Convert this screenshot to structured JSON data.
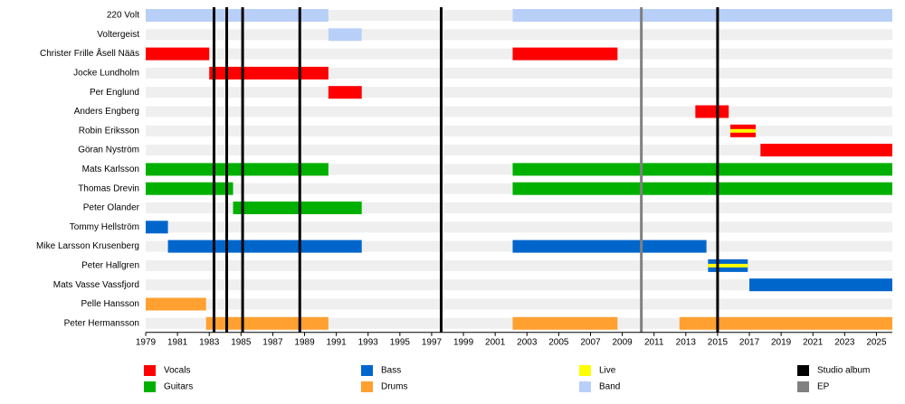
{
  "chart_data": {
    "type": "timeline",
    "xlim": [
      1979,
      2026
    ],
    "xticks": [
      1979,
      1981,
      1983,
      1985,
      1987,
      1989,
      1991,
      1993,
      1995,
      1997,
      1999,
      2001,
      2003,
      2005,
      2007,
      2009,
      2011,
      2013,
      2015,
      2017,
      2019,
      2021,
      2023,
      2025
    ],
    "series": [
      {
        "name": "Vocals",
        "color": "#ff0000"
      },
      {
        "name": "Guitars",
        "color": "#00b000"
      },
      {
        "name": "Bass",
        "color": "#0066cc"
      },
      {
        "name": "Drums",
        "color": "#ffa030"
      },
      {
        "name": "Live",
        "color": "#ffff00"
      },
      {
        "name": "Band",
        "color": "#b8d0f8"
      }
    ],
    "releases": [
      {
        "name": "Studio album",
        "color": "#000000",
        "dates": [
          1983.3,
          1984.1,
          1985.1,
          1988.7,
          1997.6,
          2015.0
        ]
      },
      {
        "name": "EP",
        "color": "#808080",
        "dates": [
          2010.2
        ]
      }
    ],
    "rows": [
      {
        "label": "220 Volt",
        "bars": [
          {
            "role": "Band",
            "start": 1979,
            "end": 1990.5
          },
          {
            "role": "Band",
            "start": 2002.1,
            "end": 2026
          }
        ]
      },
      {
        "label": "Voltergeist",
        "bars": [
          {
            "role": "Band",
            "start": 1990.5,
            "end": 1992.6
          }
        ]
      },
      {
        "label": "Christer Frille Åsell Nääs",
        "bars": [
          {
            "role": "Vocals",
            "start": 1979,
            "end": 1983
          },
          {
            "role": "Vocals",
            "start": 2002.1,
            "end": 2008.7
          }
        ]
      },
      {
        "label": "Jocke Lundholm",
        "bars": [
          {
            "role": "Vocals",
            "start": 1983,
            "end": 1990.5
          }
        ]
      },
      {
        "label": "Per Englund",
        "bars": [
          {
            "role": "Vocals",
            "start": 1990.5,
            "end": 1992.6
          }
        ]
      },
      {
        "label": "Anders Engberg",
        "bars": [
          {
            "role": "Vocals",
            "start": 2013.6,
            "end": 2015.7
          }
        ]
      },
      {
        "label": "Robin Eriksson",
        "bars": [
          {
            "role": "Vocals",
            "start": 2015.8,
            "end": 2017.4
          },
          {
            "role": "Live",
            "start": 2015.8,
            "end": 2017.4
          }
        ]
      },
      {
        "label": "Göran Nyström",
        "bars": [
          {
            "role": "Vocals",
            "start": 2017.7,
            "end": 2026
          }
        ]
      },
      {
        "label": "Mats Karlsson",
        "bars": [
          {
            "role": "Guitars",
            "start": 1979,
            "end": 1990.5
          },
          {
            "role": "Guitars",
            "start": 2002.1,
            "end": 2026
          }
        ]
      },
      {
        "label": "Thomas Drevin",
        "bars": [
          {
            "role": "Guitars",
            "start": 1979,
            "end": 1984.5
          },
          {
            "role": "Guitars",
            "start": 2002.1,
            "end": 2026
          }
        ]
      },
      {
        "label": "Peter Olander",
        "bars": [
          {
            "role": "Guitars",
            "start": 1984.5,
            "end": 1992.6
          }
        ]
      },
      {
        "label": "Tommy Hellström",
        "bars": [
          {
            "role": "Bass",
            "start": 1979,
            "end": 1980.4
          }
        ]
      },
      {
        "label": "Mike Larsson Krusenberg",
        "bars": [
          {
            "role": "Bass",
            "start": 1980.4,
            "end": 1992.6
          },
          {
            "role": "Bass",
            "start": 2002.1,
            "end": 2014.3
          }
        ]
      },
      {
        "label": "Peter Hallgren",
        "bars": [
          {
            "role": "Bass",
            "start": 2014.4,
            "end": 2016.9
          },
          {
            "role": "Live",
            "start": 2014.4,
            "end": 2016.9
          }
        ]
      },
      {
        "label": "Mats Vasse Vassfjord",
        "bars": [
          {
            "role": "Bass",
            "start": 2017,
            "end": 2026
          }
        ]
      },
      {
        "label": "Pelle Hansson",
        "bars": [
          {
            "role": "Drums",
            "start": 1979,
            "end": 1982.8
          }
        ]
      },
      {
        "label": "Peter Hermansson",
        "bars": [
          {
            "role": "Drums",
            "start": 1982.8,
            "end": 1990.5
          },
          {
            "role": "Drums",
            "start": 2002.1,
            "end": 2008.7
          },
          {
            "role": "Drums",
            "start": 2012.6,
            "end": 2026
          }
        ]
      }
    ]
  }
}
